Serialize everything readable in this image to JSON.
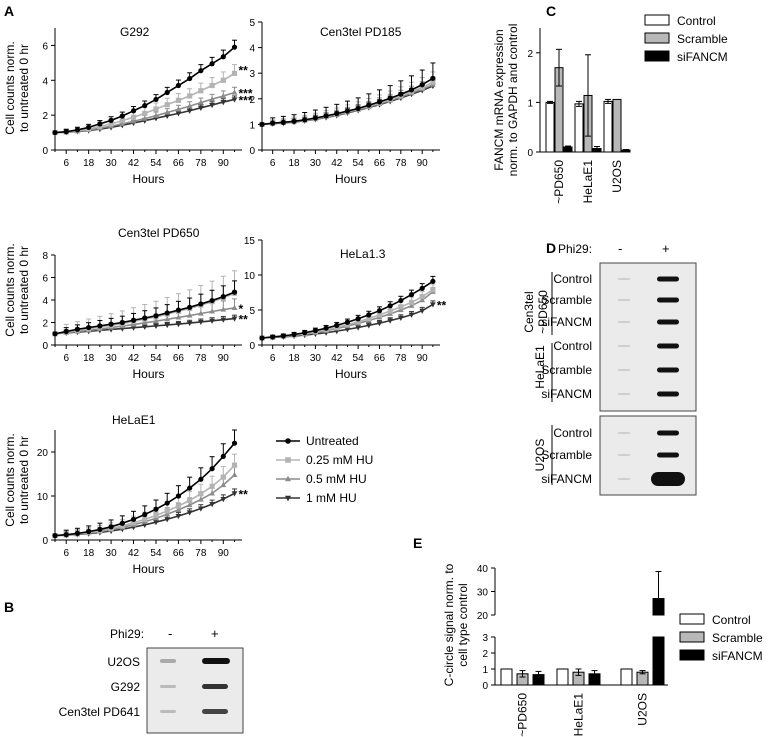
{
  "panel_letters": [
    "A",
    "B",
    "C",
    "D",
    "E"
  ],
  "growth": {
    "xlabel": "Hours",
    "ylabel_lines": [
      "Cell counts norm.",
      "to untreated 0 hr"
    ],
    "x_ticks": [
      6,
      18,
      30,
      42,
      54,
      66,
      78,
      90
    ],
    "legend": [
      "Untreated",
      "0.25 mM HU",
      "0.5 mM HU",
      "1 mM HU"
    ]
  },
  "chart_data": [
    {
      "type": "line",
      "title": "G292",
      "xlabel": "Hours",
      "ylabel": "Cell counts norm. to untreated 0 hr",
      "xlim": [
        0,
        100
      ],
      "ylim": [
        0,
        7
      ],
      "yticks": [
        0,
        2,
        4,
        6
      ],
      "x": [
        0,
        6,
        12,
        18,
        24,
        30,
        36,
        42,
        48,
        54,
        60,
        66,
        72,
        78,
        84,
        90,
        96
      ],
      "series": [
        {
          "name": "Untreated",
          "values": [
            1.0,
            1.05,
            1.15,
            1.3,
            1.5,
            1.7,
            1.95,
            2.25,
            2.55,
            2.9,
            3.3,
            3.7,
            4.1,
            4.55,
            4.95,
            5.35,
            5.9
          ],
          "err": 0.4
        },
        {
          "name": "0.25 mM HU",
          "values": [
            1.0,
            1.03,
            1.1,
            1.2,
            1.35,
            1.5,
            1.68,
            1.88,
            2.1,
            2.35,
            2.6,
            2.85,
            3.1,
            3.4,
            3.7,
            4.0,
            4.4
          ],
          "err": 0.5
        },
        {
          "name": "0.5 mM HU",
          "values": [
            1.0,
            1.02,
            1.07,
            1.15,
            1.25,
            1.37,
            1.5,
            1.65,
            1.8,
            1.97,
            2.15,
            2.33,
            2.52,
            2.72,
            2.92,
            3.1,
            3.3
          ],
          "err": 0.3
        },
        {
          "name": "1 mM HU",
          "values": [
            1.0,
            1.02,
            1.06,
            1.12,
            1.2,
            1.3,
            1.42,
            1.55,
            1.68,
            1.82,
            1.96,
            2.1,
            2.25,
            2.42,
            2.58,
            2.75,
            2.9
          ],
          "err": 0.2
        }
      ],
      "annotations": [
        "**",
        "***",
        "***"
      ]
    },
    {
      "type": "line",
      "title": "Cen3tel PD185",
      "xlabel": "Hours",
      "xlim": [
        0,
        100
      ],
      "ylim": [
        0,
        5
      ],
      "yticks": [
        0,
        1,
        2,
        3,
        4,
        5
      ],
      "x": [
        0,
        6,
        12,
        18,
        24,
        30,
        36,
        42,
        48,
        54,
        60,
        66,
        72,
        78,
        84,
        90,
        96
      ],
      "series": [
        {
          "name": "Untreated",
          "values": [
            1.0,
            1.05,
            1.08,
            1.12,
            1.18,
            1.25,
            1.33,
            1.42,
            1.52,
            1.62,
            1.75,
            1.88,
            2.02,
            2.18,
            2.35,
            2.55,
            2.8
          ],
          "err": 0.6
        },
        {
          "name": "0.25 mM HU",
          "values": [
            1.0,
            1.04,
            1.07,
            1.11,
            1.16,
            1.23,
            1.31,
            1.4,
            1.5,
            1.6,
            1.72,
            1.84,
            1.97,
            2.12,
            2.28,
            2.45,
            2.65
          ],
          "err": 0.4
        },
        {
          "name": "0.5 mM HU",
          "values": [
            1.0,
            1.03,
            1.06,
            1.1,
            1.15,
            1.21,
            1.29,
            1.37,
            1.47,
            1.57,
            1.68,
            1.8,
            1.93,
            2.07,
            2.22,
            2.38,
            2.55
          ],
          "err": 0.3
        },
        {
          "name": "1 mM HU",
          "values": [
            1.0,
            1.03,
            1.05,
            1.09,
            1.14,
            1.2,
            1.27,
            1.35,
            1.45,
            1.55,
            1.66,
            1.77,
            1.9,
            2.03,
            2.18,
            2.33,
            2.5
          ],
          "err": 0.25
        }
      ],
      "annotations": []
    },
    {
      "type": "line",
      "title": "Cen3tel PD650",
      "xlabel": "Hours",
      "ylabel": "Cell counts norm. to untreated 0 hr",
      "xlim": [
        0,
        100
      ],
      "ylim": [
        0,
        8
      ],
      "yticks": [
        0,
        2,
        4,
        6,
        8
      ],
      "x": [
        0,
        6,
        12,
        18,
        24,
        30,
        36,
        42,
        48,
        54,
        60,
        66,
        72,
        78,
        84,
        90,
        96
      ],
      "series": [
        {
          "name": "Untreated",
          "values": [
            1.0,
            1.2,
            1.4,
            1.55,
            1.7,
            1.85,
            2.0,
            2.2,
            2.4,
            2.6,
            2.85,
            3.1,
            3.35,
            3.65,
            3.95,
            4.3,
            4.7
          ],
          "err": 1.0
        },
        {
          "name": "0.25 mM HU",
          "values": [
            1.0,
            1.15,
            1.3,
            1.45,
            1.6,
            1.75,
            1.9,
            2.1,
            2.3,
            2.5,
            2.75,
            3.0,
            3.25,
            3.55,
            3.85,
            4.2,
            4.6
          ],
          "err": 2.0
        },
        {
          "name": "0.5 mM HU",
          "values": [
            1.0,
            1.1,
            1.2,
            1.3,
            1.42,
            1.55,
            1.68,
            1.82,
            1.97,
            2.12,
            2.28,
            2.45,
            2.62,
            2.8,
            2.98,
            3.15,
            3.3
          ],
          "err": 0.8
        },
        {
          "name": "1 mM HU",
          "values": [
            1.0,
            1.08,
            1.15,
            1.22,
            1.3,
            1.38,
            1.46,
            1.54,
            1.62,
            1.7,
            1.78,
            1.86,
            1.95,
            2.05,
            2.15,
            2.25,
            2.35
          ],
          "err": 0.3
        }
      ],
      "annotations": [
        "*",
        "**"
      ]
    },
    {
      "type": "line",
      "title": "HeLa1.3",
      "xlabel": "Hours",
      "xlim": [
        0,
        100
      ],
      "ylim": [
        0,
        15
      ],
      "yticks": [
        0,
        5,
        10,
        15
      ],
      "x": [
        0,
        6,
        12,
        18,
        24,
        30,
        36,
        42,
        48,
        54,
        60,
        66,
        72,
        78,
        84,
        90,
        96
      ],
      "series": [
        {
          "name": "Untreated",
          "values": [
            1.0,
            1.15,
            1.3,
            1.5,
            1.75,
            2.05,
            2.4,
            2.8,
            3.25,
            3.75,
            4.3,
            4.9,
            5.6,
            6.35,
            7.2,
            8.1,
            9.1
          ],
          "err": 0.7
        },
        {
          "name": "0.25 mM HU",
          "values": [
            1.0,
            1.12,
            1.25,
            1.42,
            1.62,
            1.88,
            2.18,
            2.52,
            2.9,
            3.32,
            3.78,
            4.3,
            4.85,
            5.45,
            6.1,
            6.9,
            7.9
          ],
          "err": 0.8
        },
        {
          "name": "0.5 mM HU",
          "values": [
            1.0,
            1.1,
            1.22,
            1.37,
            1.55,
            1.78,
            2.05,
            2.35,
            2.7,
            3.08,
            3.5,
            3.95,
            4.45,
            5.0,
            5.6,
            6.4,
            7.6
          ],
          "err": 0.6
        },
        {
          "name": "1 mM HU",
          "values": [
            1.0,
            1.08,
            1.17,
            1.28,
            1.41,
            1.57,
            1.76,
            1.98,
            2.23,
            2.5,
            2.8,
            3.12,
            3.48,
            3.88,
            4.32,
            4.9,
            5.8
          ],
          "err": 0.5
        }
      ],
      "annotations": [
        "**"
      ]
    },
    {
      "type": "line",
      "title": "HeLaE1",
      "xlabel": "Hours",
      "ylabel": "Cell counts norm. to untreated 0 hr",
      "xlim": [
        0,
        100
      ],
      "ylim": [
        0,
        25
      ],
      "yticks": [
        0,
        10,
        20
      ],
      "x": [
        0,
        6,
        12,
        18,
        24,
        30,
        36,
        42,
        48,
        54,
        60,
        66,
        72,
        78,
        84,
        90,
        96
      ],
      "series": [
        {
          "name": "Untreated",
          "values": [
            1.0,
            1.2,
            1.5,
            1.9,
            2.4,
            3.0,
            3.8,
            4.7,
            5.8,
            7.0,
            8.4,
            10.0,
            11.8,
            13.8,
            16.2,
            19.0,
            22.0
          ],
          "err": 3.0
        },
        {
          "name": "0.25 mM HU",
          "values": [
            1.0,
            1.15,
            1.4,
            1.7,
            2.1,
            2.6,
            3.2,
            3.9,
            4.7,
            5.6,
            6.6,
            7.7,
            9.0,
            10.5,
            12.2,
            14.3,
            17.0
          ],
          "err": 2.5
        },
        {
          "name": "0.5 mM HU",
          "values": [
            1.0,
            1.12,
            1.32,
            1.58,
            1.92,
            2.35,
            2.85,
            3.45,
            4.15,
            4.95,
            5.85,
            6.85,
            7.95,
            9.2,
            10.6,
            12.5,
            14.8
          ],
          "err": 2.0
        },
        {
          "name": "1 mM HU",
          "values": [
            1.0,
            1.1,
            1.25,
            1.45,
            1.72,
            2.05,
            2.45,
            2.92,
            3.45,
            4.05,
            4.72,
            5.45,
            6.25,
            7.15,
            8.15,
            9.3,
            10.6
          ],
          "err": 1.0
        }
      ],
      "annotations": [
        "**"
      ]
    },
    {
      "type": "bar",
      "panel": "C",
      "ylabel_lines": [
        "FANCM mRNA expression",
        "norm. to GAPDH and control"
      ],
      "categories": [
        "~PD650",
        "HeLaE1",
        "U2OS"
      ],
      "ylim": [
        0,
        2.5
      ],
      "yticks": [
        0,
        1,
        2
      ],
      "series": [
        {
          "name": "Control",
          "values": [
            1.0,
            0.97,
            1.02
          ],
          "err": [
            0.02,
            0.05,
            0.04
          ]
        },
        {
          "name": "Scramble",
          "values": [
            1.7,
            1.14,
            1.06
          ],
          "err": [
            0.37,
            0.82,
            0.0
          ]
        },
        {
          "name": "siFANCM",
          "values": [
            0.1,
            0.07,
            0.04
          ],
          "err": [
            0.02,
            0.04,
            0.01
          ]
        }
      ]
    },
    {
      "type": "bar",
      "panel": "E",
      "broken_axis": true,
      "ylabel_lines": [
        "C-circle signal norm. to",
        "cell type control"
      ],
      "categories": [
        "~PD650",
        "HeLaE1",
        "U2OS"
      ],
      "lower_ticks": [
        0,
        1,
        2,
        3
      ],
      "upper_ticks": [
        20,
        30,
        40
      ],
      "series": [
        {
          "name": "Control",
          "values": [
            1.0,
            1.0,
            1.0
          ],
          "err": [
            0,
            0,
            0
          ]
        },
        {
          "name": "Scramble",
          "values": [
            0.7,
            0.8,
            0.8
          ],
          "err": [
            0.2,
            0.2,
            0.1
          ]
        },
        {
          "name": "siFANCM",
          "values": [
            0.65,
            0.7,
            27.0
          ],
          "err": [
            0.2,
            0.2,
            11.5
          ]
        }
      ]
    }
  ],
  "panel_b": {
    "header": "Phi29:",
    "minus": "-",
    "plus": "+",
    "rows": [
      "U2OS",
      "G292",
      "Cen3tel PD641"
    ]
  },
  "panel_d": {
    "header": "Phi29:",
    "minus": "-",
    "plus": "+",
    "groups": [
      {
        "label_lines": [
          "Cen3tel",
          "~PD650"
        ],
        "rows": [
          "Control",
          "Scramble",
          "siFANCM"
        ]
      },
      {
        "label_lines": [
          "HeLaE1"
        ],
        "rows": [
          "Control",
          "Scramble",
          "siFANCM"
        ]
      },
      {
        "label_lines": [
          "U2OS"
        ],
        "rows": [
          "Control",
          "Scramble",
          "siFANCM"
        ]
      }
    ]
  },
  "bar_legend": [
    "Control",
    "Scramble",
    "siFANCM"
  ],
  "colors": {
    "untreated": "#000000",
    "hu025": "#b3b3b3",
    "hu05": "#8c8c8c",
    "hu1": "#333333",
    "control_fill": "#ffffff",
    "scramble_fill": "#b8b8b8",
    "sifancm_fill": "#000000",
    "blot_bg": "#ebebeb"
  }
}
